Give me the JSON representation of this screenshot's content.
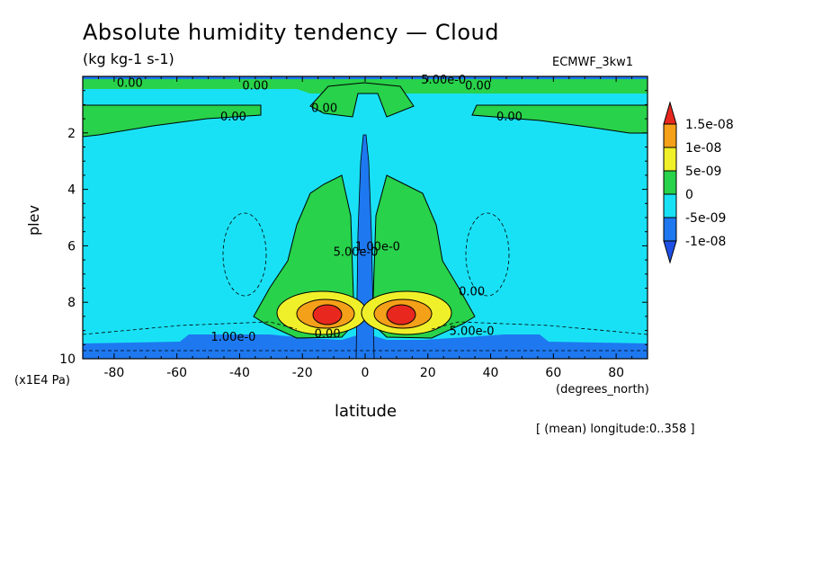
{
  "chart_data": {
    "type": "heatmap",
    "title": "Absolute humidity tendency — Cloud",
    "units": "(kg kg-1 s-1)",
    "dataset": "ECMWF_3kw1",
    "xlabel": "latitude",
    "x_units": "(degrees_north)",
    "ylabel": "plev",
    "y_units": "(x1E4 Pa)",
    "xlim": [
      -90,
      90
    ],
    "ylim": [
      10,
      0
    ],
    "x_ticks": [
      -80,
      -60,
      -40,
      -20,
      0,
      20,
      40,
      60,
      80
    ],
    "y_ticks": [
      2,
      4,
      6,
      8,
      10
    ],
    "footnote": "[ (mean) longitude:0..358 ]",
    "colorbar": {
      "levels": [
        "1.5e-08",
        "1e-08",
        "5e-09",
        "0",
        "-5e-09",
        "-1e-08"
      ],
      "colors": [
        "#e8281e",
        "#f5a019",
        "#f0f02a",
        "#28d24a",
        "#19e1f5",
        "#1e78f0",
        "#1e50e6"
      ]
    },
    "contour_labels": [
      {
        "text": "0.00",
        "lat": -75,
        "plev": 0.2
      },
      {
        "text": "0.00",
        "lat": -35,
        "plev": 0.3
      },
      {
        "text": "0.00",
        "lat": -42,
        "plev": 1.4
      },
      {
        "text": "0.00",
        "lat": -13,
        "plev": 1.1
      },
      {
        "text": "5.00e-0",
        "lat": 25,
        "plev": 0.1
      },
      {
        "text": "0.00",
        "lat": 36,
        "plev": 0.3
      },
      {
        "text": "0.00",
        "lat": 46,
        "plev": 1.4
      },
      {
        "text": "5.00e-0",
        "lat": -3,
        "plev": 6.2
      },
      {
        "text": "1.00e-0",
        "lat": 4,
        "plev": 6.0
      },
      {
        "text": "0.00",
        "lat": 34,
        "plev": 7.6
      },
      {
        "text": "1.00e-0",
        "lat": -42,
        "plev": 9.2
      },
      {
        "text": "0.00",
        "lat": -12,
        "plev": 9.1
      },
      {
        "text": "5.00e-0",
        "lat": 34,
        "plev": 9.0
      }
    ]
  }
}
